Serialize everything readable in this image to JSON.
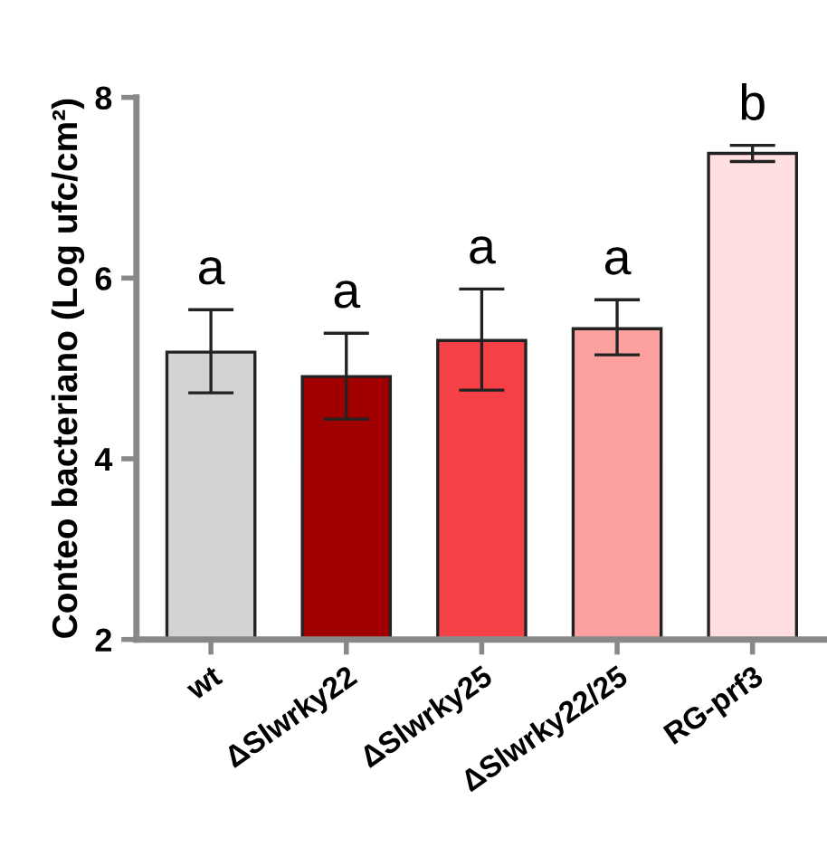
{
  "chart_data": {
    "type": "bar",
    "ylabel": "Conteo bacteriano (Log ufc/cm²)",
    "categories": [
      "wt",
      "ΔSlwrky22",
      "ΔSlwrky25",
      "ΔSlwrky22/25",
      "RG-prf3"
    ],
    "values": [
      5.18,
      4.91,
      5.31,
      5.44,
      7.38
    ],
    "colors": [
      "#d3d3d3",
      "#a00000",
      "#f54045",
      "#fca0a0",
      "#ffdfe0"
    ],
    "errors": [
      [
        4.73,
        5.65
      ],
      [
        4.44,
        5.39
      ],
      [
        4.76,
        5.88
      ],
      [
        5.15,
        5.76
      ],
      [
        7.29,
        7.47
      ]
    ],
    "ylim": [
      2,
      8
    ],
    "yticks": [
      2,
      4,
      6,
      8
    ],
    "grid": false,
    "legend": false,
    "annotations": [
      "a",
      "a",
      "a",
      "a",
      "b"
    ]
  }
}
